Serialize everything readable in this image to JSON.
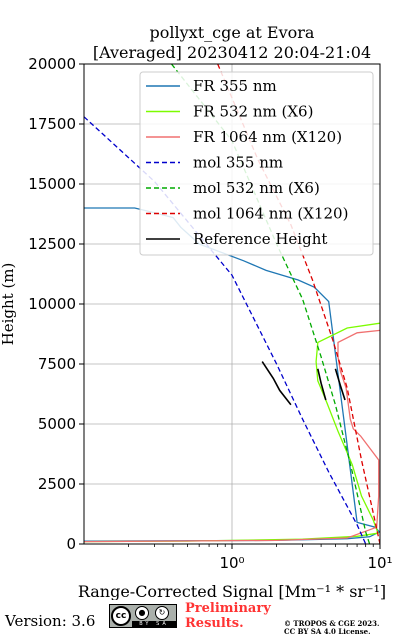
{
  "chart_data": {
    "type": "line",
    "title_line1": "pollyxt_cge at Evora",
    "title_line2": "[Averaged] 20230412 20:04-21:04",
    "xlabel": "Range-Corrected Signal [Mm⁻¹ * sr⁻¹]",
    "ylabel": "Height (m)",
    "xscale": "log",
    "xlim": [
      0.1,
      10
    ],
    "ylim": [
      0,
      20000
    ],
    "x_ticks": [
      1,
      10
    ],
    "x_tick_labels": [
      "10⁰",
      "10¹"
    ],
    "y_ticks": [
      0,
      2500,
      5000,
      7500,
      10000,
      12500,
      15000,
      17500,
      20000
    ],
    "y_tick_labels": [
      "0",
      "2500",
      "5000",
      "7500",
      "10000",
      "12500",
      "15000",
      "17500",
      "20000"
    ],
    "grid": true,
    "legend_position": "top-right",
    "series": [
      {
        "name": "FR 355 nm",
        "color": "#1f77b4",
        "style": "solid",
        "points": [
          [
            0.1,
            120
          ],
          [
            2,
            150
          ],
          [
            6,
            220
          ],
          [
            8.5,
            300
          ],
          [
            9.9,
            500
          ],
          [
            9.3,
            700
          ],
          [
            7,
            900
          ],
          [
            4.5,
            10100
          ],
          [
            3.6,
            10700
          ],
          [
            2.8,
            11000
          ],
          [
            1.7,
            11400
          ],
          [
            1.2,
            11800
          ],
          [
            0.6,
            12500
          ],
          [
            0.45,
            13200
          ],
          [
            0.4,
            13600
          ],
          [
            0.3,
            13800
          ],
          [
            0.22,
            14000
          ],
          [
            0.1,
            14000
          ]
        ]
      },
      {
        "name": "FR 532 nm (X6)",
        "color": "#7cfc00",
        "style": "solid",
        "points": [
          [
            0.1,
            100
          ],
          [
            0.5,
            120
          ],
          [
            3,
            200
          ],
          [
            7,
            320
          ],
          [
            9.7,
            450
          ],
          [
            9.0,
            1000
          ],
          [
            7.5,
            2000
          ],
          [
            6.5,
            3300
          ],
          [
            5.2,
            4700
          ],
          [
            4.3,
            6000
          ],
          [
            3.8,
            6800
          ],
          [
            3.7,
            7600
          ],
          [
            3.8,
            8400
          ],
          [
            6,
            9000
          ],
          [
            10,
            9200
          ]
        ]
      },
      {
        "name": "FR 1064 nm (X120)",
        "color": "#f07070",
        "style": "solid",
        "points": [
          [
            0.1,
            100
          ],
          [
            2,
            150
          ],
          [
            6,
            250
          ],
          [
            9.5,
            700
          ],
          [
            9.8,
            2000
          ],
          [
            9.8,
            3500
          ],
          [
            7.4,
            4500
          ],
          [
            6.6,
            4800
          ],
          [
            6.3,
            5200
          ],
          [
            5.9,
            6500
          ],
          [
            5.4,
            7200
          ],
          [
            5.2,
            7800
          ],
          [
            5.2,
            8400
          ],
          [
            7,
            8800
          ],
          [
            10,
            8900
          ]
        ]
      },
      {
        "name": "mol 355 nm",
        "color": "#0000cc",
        "style": "dashed",
        "points": [
          [
            0.1,
            17800
          ],
          [
            0.3,
            15100
          ],
          [
            1.0,
            11200
          ],
          [
            2.0,
            7500
          ],
          [
            3.0,
            5200
          ],
          [
            4.5,
            3000
          ],
          [
            7.0,
            800
          ],
          [
            8.0,
            0
          ]
        ]
      },
      {
        "name": "mol 532 nm (X6)",
        "color": "#00aa00",
        "style": "dashed",
        "points": [
          [
            0.39,
            20000
          ],
          [
            1.0,
            16800
          ],
          [
            2.0,
            12500
          ],
          [
            3.0,
            10200
          ],
          [
            4.0,
            7800
          ],
          [
            5.0,
            5800
          ],
          [
            6.5,
            3000
          ],
          [
            8.0,
            500
          ],
          [
            8.5,
            0
          ]
        ]
      },
      {
        "name": "mol 1064 nm (X120)",
        "color": "#dd0000",
        "style": "dashed",
        "points": [
          [
            0.8,
            20000
          ],
          [
            1.5,
            16000
          ],
          [
            2.5,
            13300
          ],
          [
            3.5,
            11000
          ],
          [
            4.8,
            8500
          ],
          [
            6.0,
            6500
          ],
          [
            7.5,
            3500
          ],
          [
            9.0,
            1300
          ],
          [
            10,
            0
          ]
        ]
      },
      {
        "name": "Reference Height",
        "color": "#000000",
        "style": "solid",
        "ranges": [
          [
            [
              1.6,
              7600
            ],
            [
              1.9,
              6900
            ],
            [
              2.1,
              6400
            ],
            [
              2.5,
              5800
            ]
          ],
          [
            [
              3.8,
              7300
            ],
            [
              4.0,
              6700
            ],
            [
              4.3,
              6000
            ]
          ],
          [
            [
              5.0,
              7300
            ],
            [
              5.4,
              6600
            ],
            [
              5.8,
              6000
            ]
          ]
        ]
      }
    ]
  },
  "footer": {
    "version": "Version: 3.6",
    "cc_label": "cc",
    "cc_by": "BY",
    "cc_sa": "SA",
    "preliminary_line1": "Preliminary",
    "preliminary_line2": "Results.",
    "copyright_line1": "© TROPOS & CGE 2023.",
    "copyright_line2": "CC BY SA 4.0 License."
  }
}
